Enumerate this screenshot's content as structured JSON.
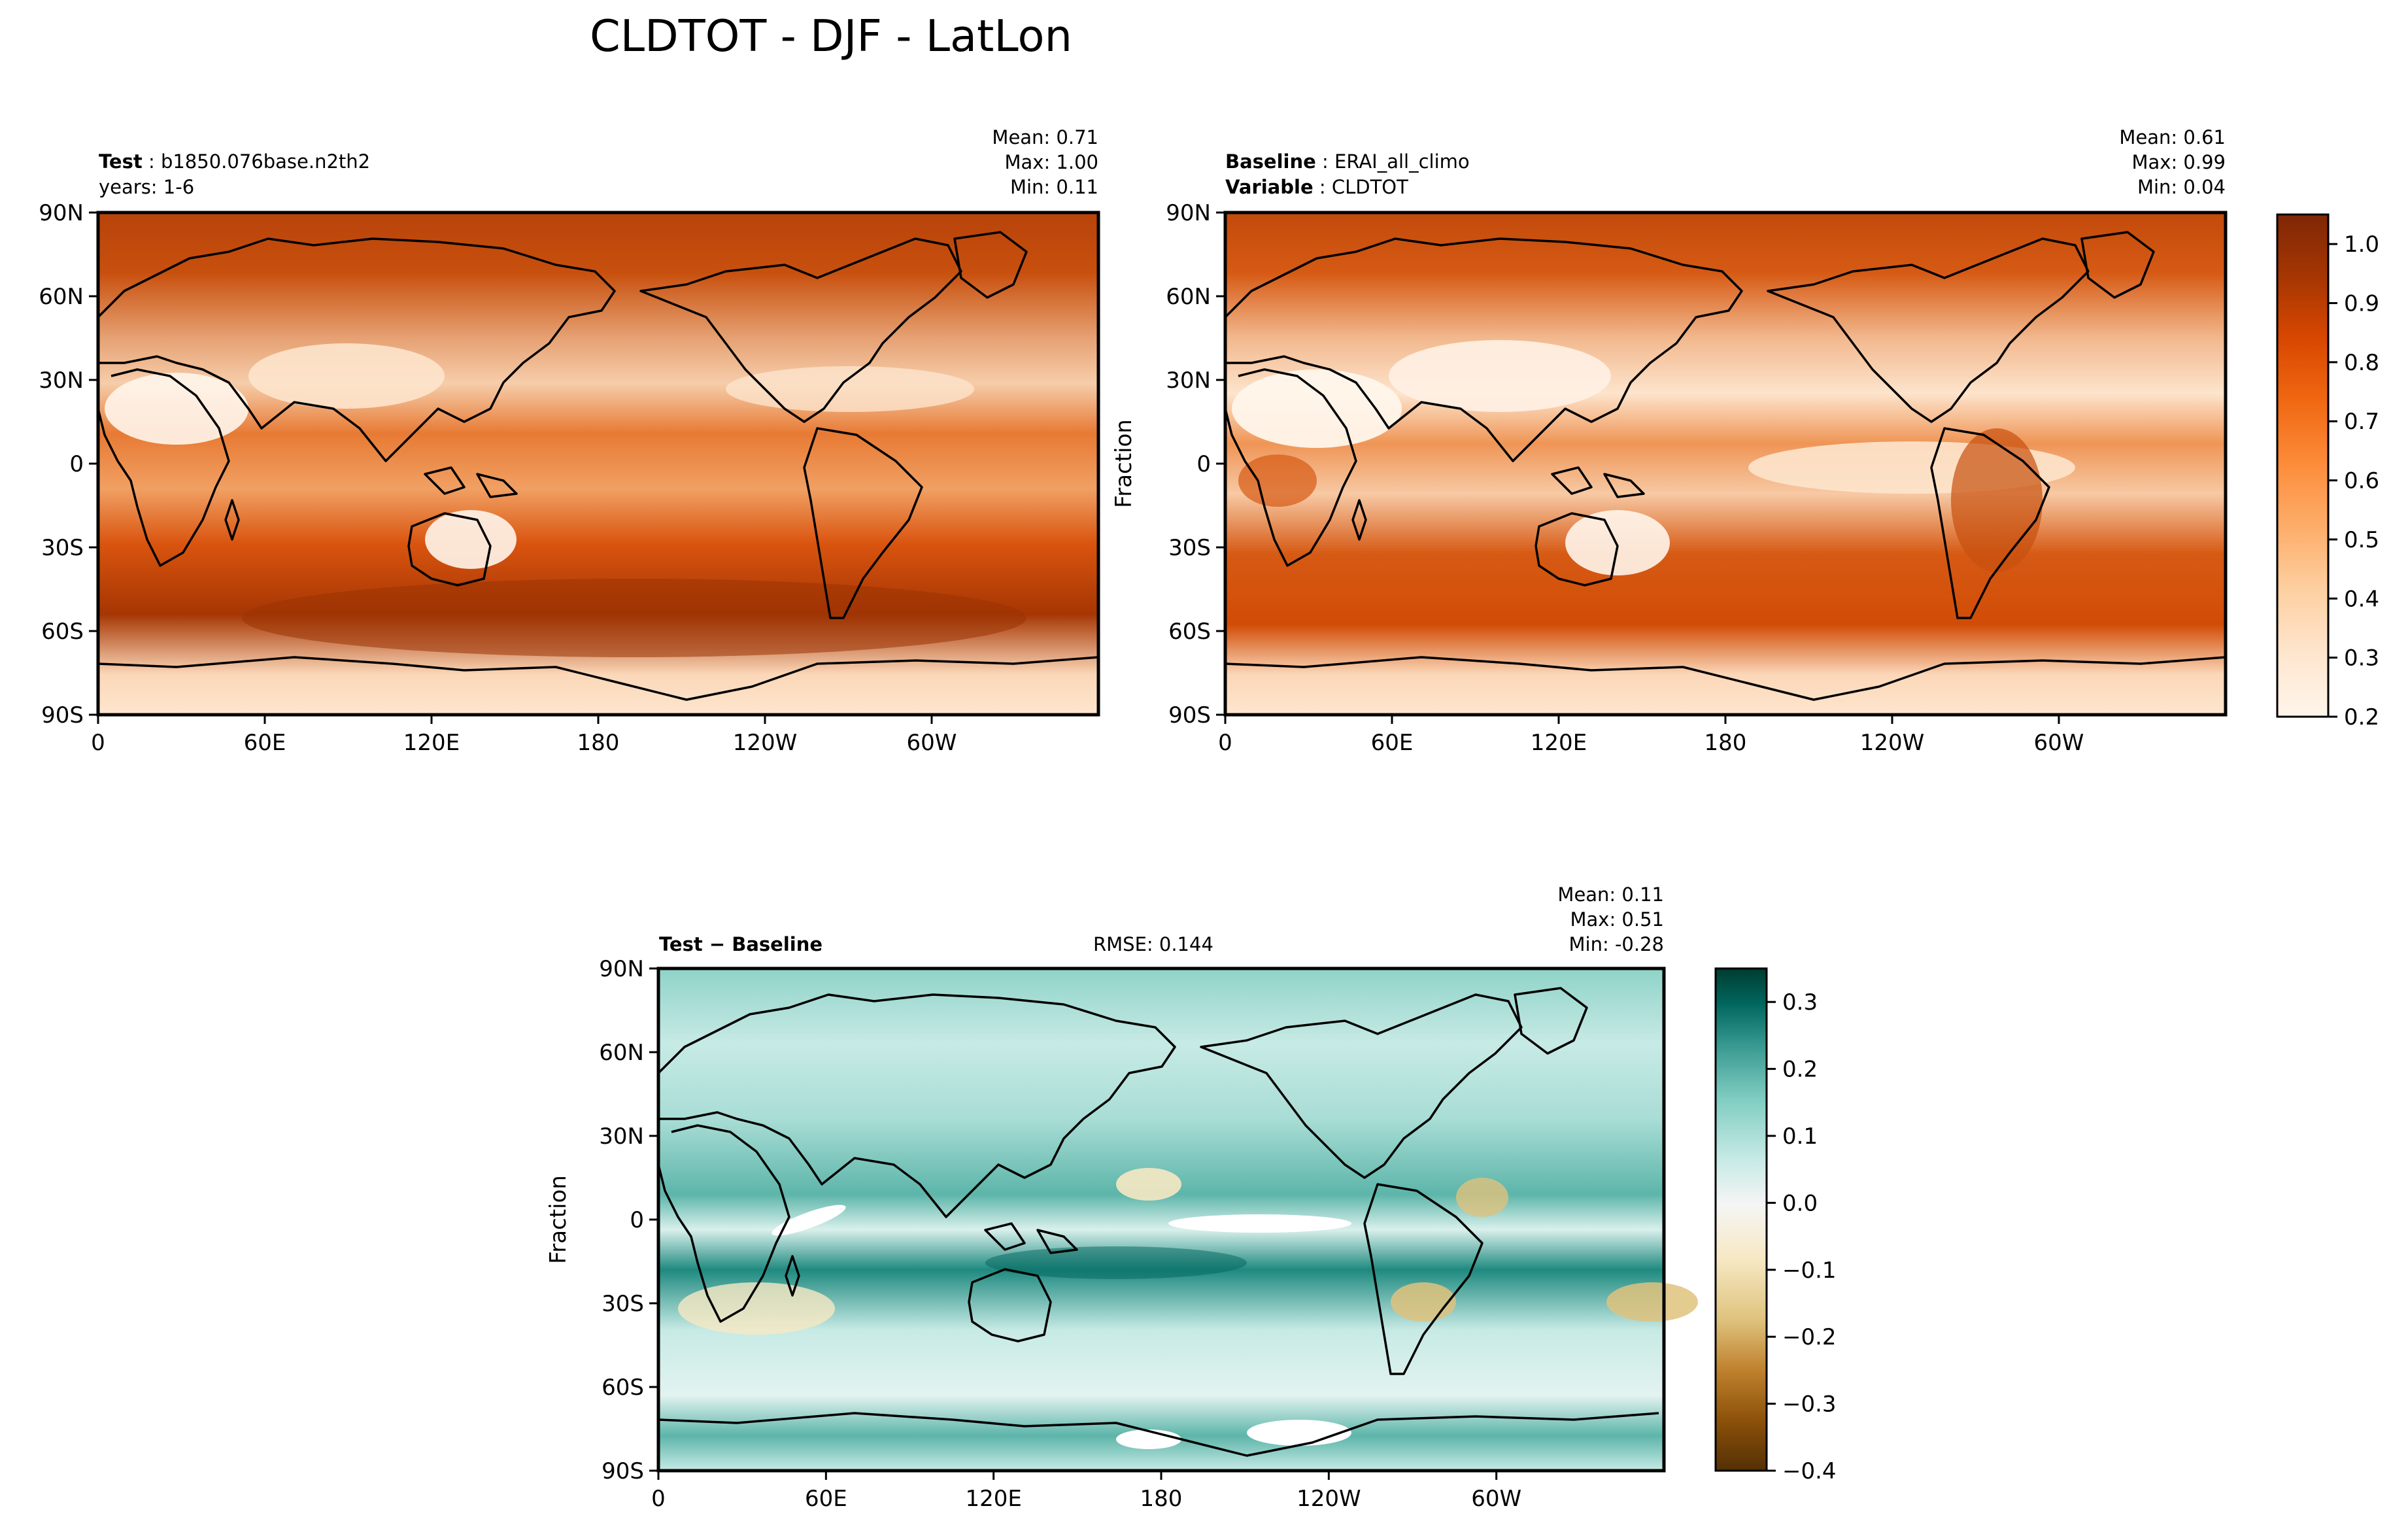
{
  "figure": {
    "title": "CLDTOT - DJF - LatLon"
  },
  "chart_data": [
    {
      "type": "heatmap",
      "panel": "test",
      "label_bold": "Test",
      "label_value": "b1850.076base.n2th2",
      "label_line2": "years: 1-6",
      "stats": {
        "mean": "Mean:  0.71",
        "max": "Max:  1.00",
        "min": "Min:  0.11"
      },
      "ylabel": "",
      "x_ticks": [
        "0",
        "60E",
        "120E",
        "180",
        "120W",
        "60W"
      ],
      "y_ticks": [
        "90N",
        "60N",
        "30N",
        "0",
        "30S",
        "60S",
        "90S"
      ],
      "xlim": [
        0,
        360
      ],
      "ylim": [
        -90,
        90
      ],
      "colormap": "Oranges",
      "clim": [
        0.2,
        1.05
      ]
    },
    {
      "type": "heatmap",
      "panel": "baseline",
      "label_bold": "Baseline",
      "label_value": "ERAI_all_climo",
      "label2_bold": "Variable",
      "label2_value": "CLDTOT",
      "stats": {
        "mean": "Mean:  0.61",
        "max": "Max:  0.99",
        "min": "Min:  0.04"
      },
      "ylabel": "Fraction",
      "x_ticks": [
        "0",
        "60E",
        "120E",
        "180",
        "120W",
        "60W"
      ],
      "y_ticks": [
        "90N",
        "60N",
        "30N",
        "0",
        "30S",
        "60S",
        "90S"
      ],
      "xlim": [
        0,
        360
      ],
      "ylim": [
        -90,
        90
      ],
      "colormap": "Oranges",
      "colorbar": {
        "ticks": [
          "1.0",
          "0.9",
          "0.8",
          "0.7",
          "0.6",
          "0.5",
          "0.4",
          "0.3",
          "0.2"
        ],
        "range": [
          0.2,
          1.05
        ]
      }
    },
    {
      "type": "heatmap",
      "panel": "difference",
      "label_bold": "Test − Baseline",
      "rmse": "RMSE: 0.144",
      "stats": {
        "mean": "Mean:  0.11",
        "max": "Max:  0.51",
        "min": "Min: -0.28"
      },
      "ylabel": "Fraction",
      "x_ticks": [
        "0",
        "60E",
        "120E",
        "180",
        "120W",
        "60W"
      ],
      "y_ticks": [
        "90N",
        "60N",
        "30N",
        "0",
        "30S",
        "60S",
        "90S"
      ],
      "xlim": [
        0,
        360
      ],
      "ylim": [
        -90,
        90
      ],
      "colormap": "BrBG",
      "colorbar": {
        "ticks": [
          "0.3",
          "0.2",
          "0.1",
          "0.0",
          "−0.1",
          "−0.2",
          "−0.3",
          "−0.4"
        ],
        "range": [
          -0.4,
          0.35
        ]
      }
    }
  ],
  "colors": {
    "oranges": [
      "#fff5eb",
      "#fee6ce",
      "#fdd0a2",
      "#fdae6b",
      "#fd8d3c",
      "#f16913",
      "#d94801",
      "#a63603",
      "#7f2704"
    ],
    "brbg": [
      "#543005",
      "#8c510a",
      "#bf812d",
      "#dfc27d",
      "#f6e8c3",
      "#f5f5f5",
      "#c7eae5",
      "#80cdc1",
      "#35978f",
      "#01665e",
      "#003c30"
    ]
  }
}
